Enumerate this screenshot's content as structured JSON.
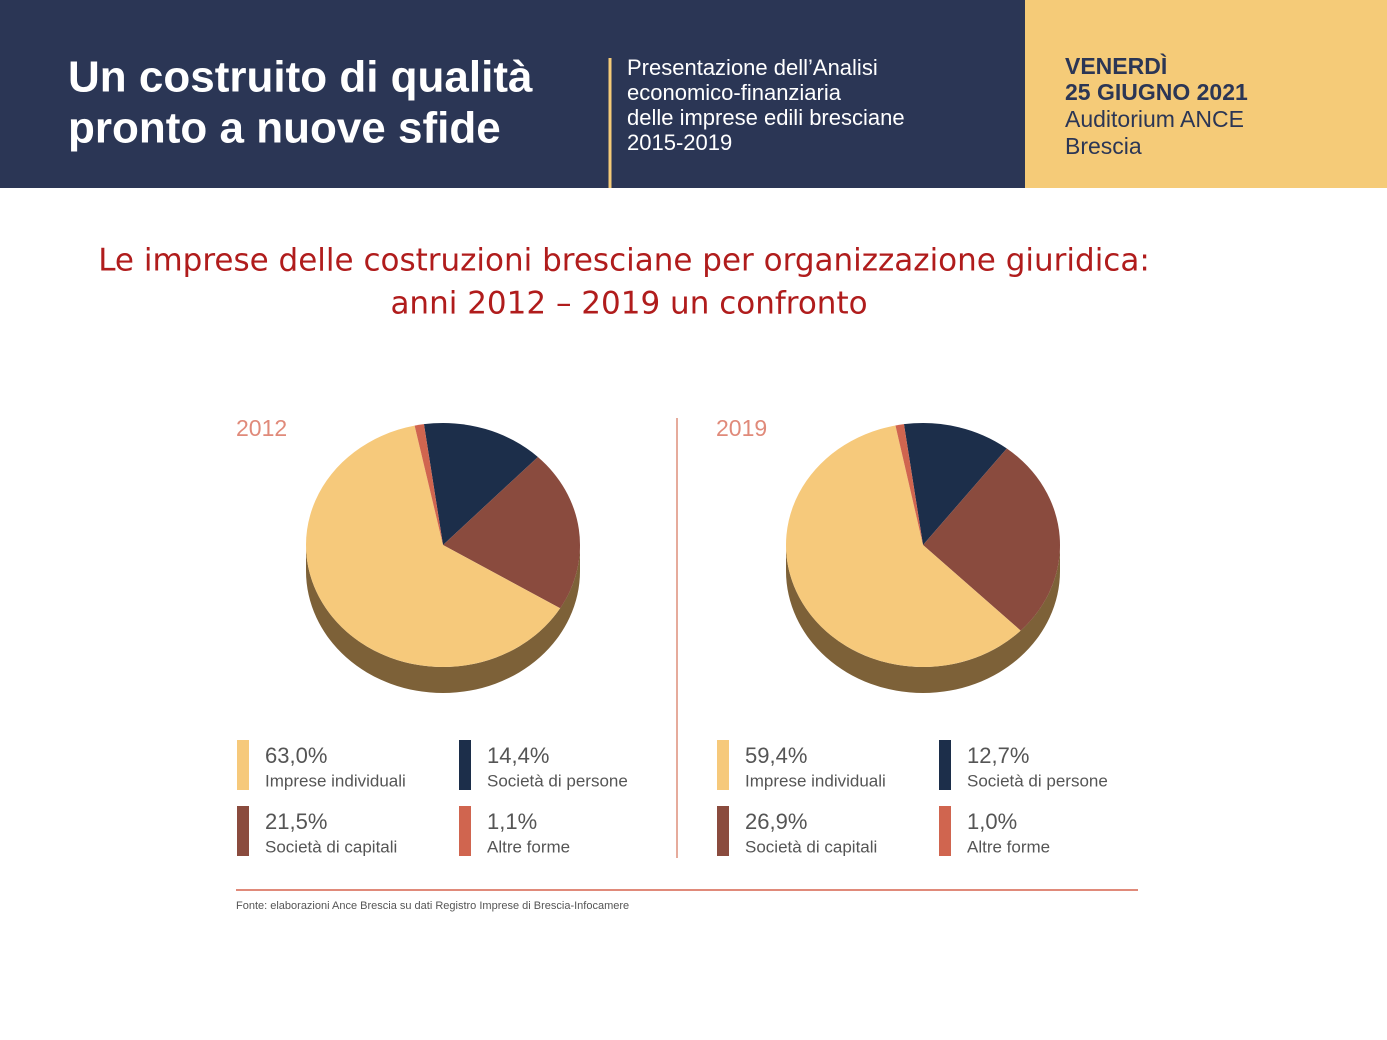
{
  "header": {
    "title": [
      "Un costruito di qualità",
      "pronto a nuove sfide"
    ],
    "subtitle": [
      "Presentazione dell’Analisi",
      "economico-finanziaria",
      "delle imprese edili bresciane",
      "2015-2019"
    ],
    "event": [
      "VENERDÌ",
      "25 GIUGNO 2021",
      "Auditorium ANCE",
      "Brescia"
    ]
  },
  "slide_title": [
    "Le imprese delle costruzioni bresciane per organizzazione giuridica:",
    "anni 2012 – 2019 un confronto"
  ],
  "chart_data": [
    {
      "type": "pie",
      "title": "2012",
      "categories": [
        "Imprese individuali",
        "Società di persone",
        "Società di capitali",
        "Altre forme"
      ],
      "values": [
        63.0,
        14.4,
        21.5,
        1.1
      ],
      "value_labels": [
        "63,0%",
        "14,4%",
        "21,5%",
        "1,1%"
      ],
      "colors": [
        "#f6c97b",
        "#1c2e4a",
        "#8a4b3e",
        "#d0654f"
      ]
    },
    {
      "type": "pie",
      "title": "2019",
      "categories": [
        "Imprese individuali",
        "Società di persone",
        "Società di capitali",
        "Altre forme"
      ],
      "values": [
        59.4,
        12.7,
        26.9,
        1.0
      ],
      "value_labels": [
        "59,4%",
        "12,7%",
        "26,9%",
        "1,0%"
      ],
      "colors": [
        "#f6c97b",
        "#1c2e4a",
        "#8a4b3e",
        "#d0654f"
      ]
    }
  ],
  "source": "Fonte: elaborazioni Ance Brescia su dati Registro Imprese di Brescia-Infocamere"
}
